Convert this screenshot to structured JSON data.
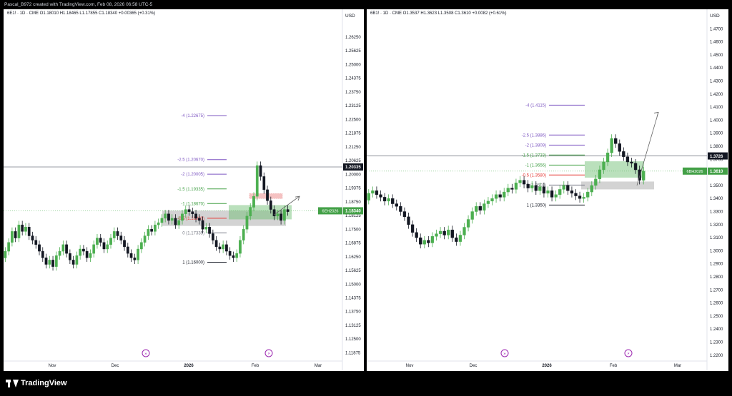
{
  "header": {
    "text": "Pascal_B972 created with TradingView.com, Feb 08, 2026 06:58 UTC-5"
  },
  "footer": {
    "brand": "TradingView"
  },
  "colors": {
    "up": "#26a69a",
    "down": "#131722",
    "fib_purple": "#7e57c2",
    "fib_green": "#43a047",
    "fib_red": "#e53935"
  },
  "chart_data": [
    {
      "type": "candlestick",
      "symbol_line": "6E1! · 1D · CME  O1.18010  H1.18465  L1.17855  C1.18340  +0.00365 (+0.31%)",
      "currency": "USD",
      "ylim": [
        1.115,
        1.268
      ],
      "yticks": [
        "1.26250",
        "1.25625",
        "1.25000",
        "1.24375",
        "1.23750",
        "1.23125",
        "1.22500",
        "1.21875",
        "1.21250",
        "1.20625",
        "1.20000",
        "1.19375",
        "1.18750",
        "1.18125",
        "1.17500",
        "1.16875",
        "1.16250",
        "1.15625",
        "1.15000",
        "1.14375",
        "1.13750",
        "1.13125",
        "1.12500",
        "1.11875"
      ],
      "xlabels": [
        "Nov",
        "Dec",
        "2026",
        "Feb",
        "Mar"
      ],
      "price_tags": [
        {
          "label": "",
          "value": "1.20335",
          "y": 1.20335,
          "style": "gray"
        },
        {
          "label": "6EH2026",
          "value": "1.18340",
          "y": 1.1834,
          "style": "green"
        }
      ],
      "fib_levels": [
        {
          "text": "-4 (1.22675)",
          "y": 1.22675,
          "color": "purple"
        },
        {
          "text": "-2.5 (1.20670)",
          "y": 1.2067,
          "color": "purple"
        },
        {
          "text": "-2 (1.20005)",
          "y": 1.20005,
          "color": "purple"
        },
        {
          "text": "-1.5 (1.19335)",
          "y": 1.19335,
          "color": "green"
        },
        {
          "text": "-1 (1.18670)",
          "y": 1.1867,
          "color": "green"
        },
        {
          "text": "-0.5 (1.18000)",
          "y": 1.18,
          "color": "red"
        },
        {
          "text": "0 (1.17335)",
          "y": 1.17335,
          "color": "gray"
        },
        {
          "text": "1 (1.16000)",
          "y": 1.16,
          "color": "dark"
        }
      ],
      "closes": [
        1.165,
        1.169,
        1.174,
        1.171,
        1.177,
        1.174,
        1.176,
        1.172,
        1.17,
        1.168,
        1.165,
        1.162,
        1.159,
        1.161,
        1.158,
        1.163,
        1.165,
        1.168,
        1.164,
        1.161,
        1.159,
        1.163,
        1.166,
        1.165,
        1.162,
        1.164,
        1.168,
        1.171,
        1.169,
        1.166,
        1.168,
        1.171,
        1.174,
        1.172,
        1.17,
        1.167,
        1.164,
        1.162,
        1.161,
        1.166,
        1.169,
        1.172,
        1.175,
        1.174,
        1.177,
        1.178,
        1.18,
        1.182,
        1.179,
        1.18,
        1.177,
        1.179,
        1.182,
        1.184,
        1.183,
        1.182,
        1.18,
        1.179,
        1.175,
        1.176,
        1.173,
        1.17,
        1.167,
        1.166,
        1.168,
        1.165,
        1.163,
        1.162,
        1.164,
        1.17,
        1.175,
        1.181,
        1.185,
        1.19,
        1.204,
        1.199,
        1.193,
        1.188,
        1.184,
        1.181,
        1.182,
        1.179,
        1.184,
        1.183
      ]
    },
    {
      "type": "candlestick",
      "symbol_line": "6B1! · 1D · CME  O1.3537  H1.3623  L1.3508  C1.3610  +0.0082 (+0.61%)",
      "currency": "USD",
      "ylim": [
        1.215,
        1.48
      ],
      "yticks": [
        "1.4700",
        "1.4600",
        "1.4500",
        "1.4400",
        "1.4300",
        "1.4200",
        "1.4100",
        "1.4000",
        "1.3900",
        "1.3800",
        "1.3700",
        "1.3600",
        "1.3500",
        "1.3400",
        "1.3300",
        "1.3200",
        "1.3100",
        "1.3000",
        "1.2900",
        "1.2800",
        "1.2700",
        "1.2600",
        "1.2500",
        "1.2400",
        "1.2300",
        "1.2200"
      ],
      "xlabels": [
        "Nov",
        "Dec",
        "2026",
        "Feb",
        "Mar"
      ],
      "price_tags": [
        {
          "label": "",
          "value": "1.3726",
          "y": 1.3726,
          "style": "gray"
        },
        {
          "label": "6BH2026",
          "value": "1.3610",
          "y": 1.361,
          "style": "green"
        }
      ],
      "fib_levels": [
        {
          "text": "-4 (1.4115)",
          "y": 1.4115,
          "color": "purple"
        },
        {
          "text": "-2.5 (1.3886)",
          "y": 1.3886,
          "color": "purple"
        },
        {
          "text": "-2 (1.3809)",
          "y": 1.3809,
          "color": "purple"
        },
        {
          "text": "-1.5 (1.3733)",
          "y": 1.3733,
          "color": "green"
        },
        {
          "text": "-1 (1.3656)",
          "y": 1.3656,
          "color": "green"
        },
        {
          "text": "-0.5 (1.3580)",
          "y": 1.358,
          "color": "red"
        },
        {
          "text": "0 (1.3503)",
          "y": 1.3503,
          "color": "gray"
        },
        {
          "text": "1 (1.3350)",
          "y": 1.335,
          "color": "dark"
        }
      ],
      "closes": [
        1.344,
        1.346,
        1.343,
        1.341,
        1.338,
        1.34,
        1.336,
        1.334,
        1.33,
        1.326,
        1.32,
        1.314,
        1.31,
        1.305,
        1.308,
        1.306,
        1.311,
        1.313,
        1.315,
        1.312,
        1.316,
        1.31,
        1.307,
        1.312,
        1.318,
        1.324,
        1.33,
        1.334,
        1.331,
        1.336,
        1.338,
        1.34,
        1.343,
        1.341,
        1.345,
        1.348,
        1.347,
        1.352,
        1.354,
        1.351,
        1.348,
        1.35,
        1.346,
        1.349,
        1.344,
        1.346,
        1.341,
        1.343,
        1.347,
        1.35,
        1.346,
        1.344,
        1.342,
        1.34,
        1.341,
        1.345,
        1.35,
        1.355,
        1.362,
        1.368,
        1.375,
        1.386,
        1.382,
        1.376,
        1.372,
        1.368,
        1.367,
        1.362,
        1.354,
        1.361
      ]
    }
  ]
}
